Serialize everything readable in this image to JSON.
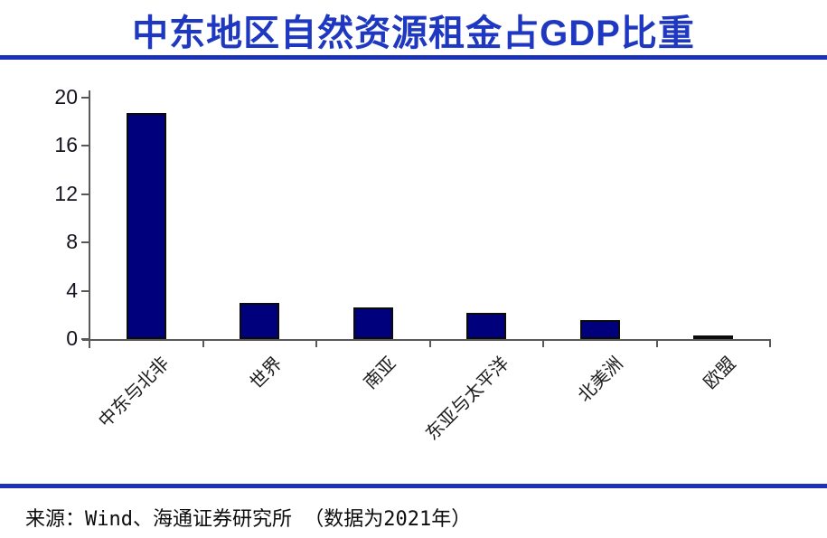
{
  "title": "中东地区自然资源租金占GDP比重",
  "source_note": "来源：Wind、海通证券研究所 （数据为2021年）",
  "colors": {
    "title_blue": "#1e38c2",
    "rule_blue": "#1b32b8",
    "bar_fill": "#00007d",
    "bar_border": "#0b0b0b",
    "axis_gray": "#595959"
  },
  "chart_data": {
    "type": "bar",
    "title": "中东地区自然资源租金占GDP比重",
    "categories": [
      "中东与北非",
      "世界",
      "南亚",
      "东亚与太平洋",
      "北美洲",
      "欧盟"
    ],
    "values": [
      18.7,
      3.0,
      2.6,
      2.2,
      1.6,
      0.3
    ],
    "xlabel": "",
    "ylabel": "",
    "ylim": [
      0,
      20
    ],
    "yticks": [
      0,
      4,
      8,
      12,
      16,
      20
    ],
    "grid": false,
    "legend": "none",
    "bar_color": "#00007d"
  }
}
